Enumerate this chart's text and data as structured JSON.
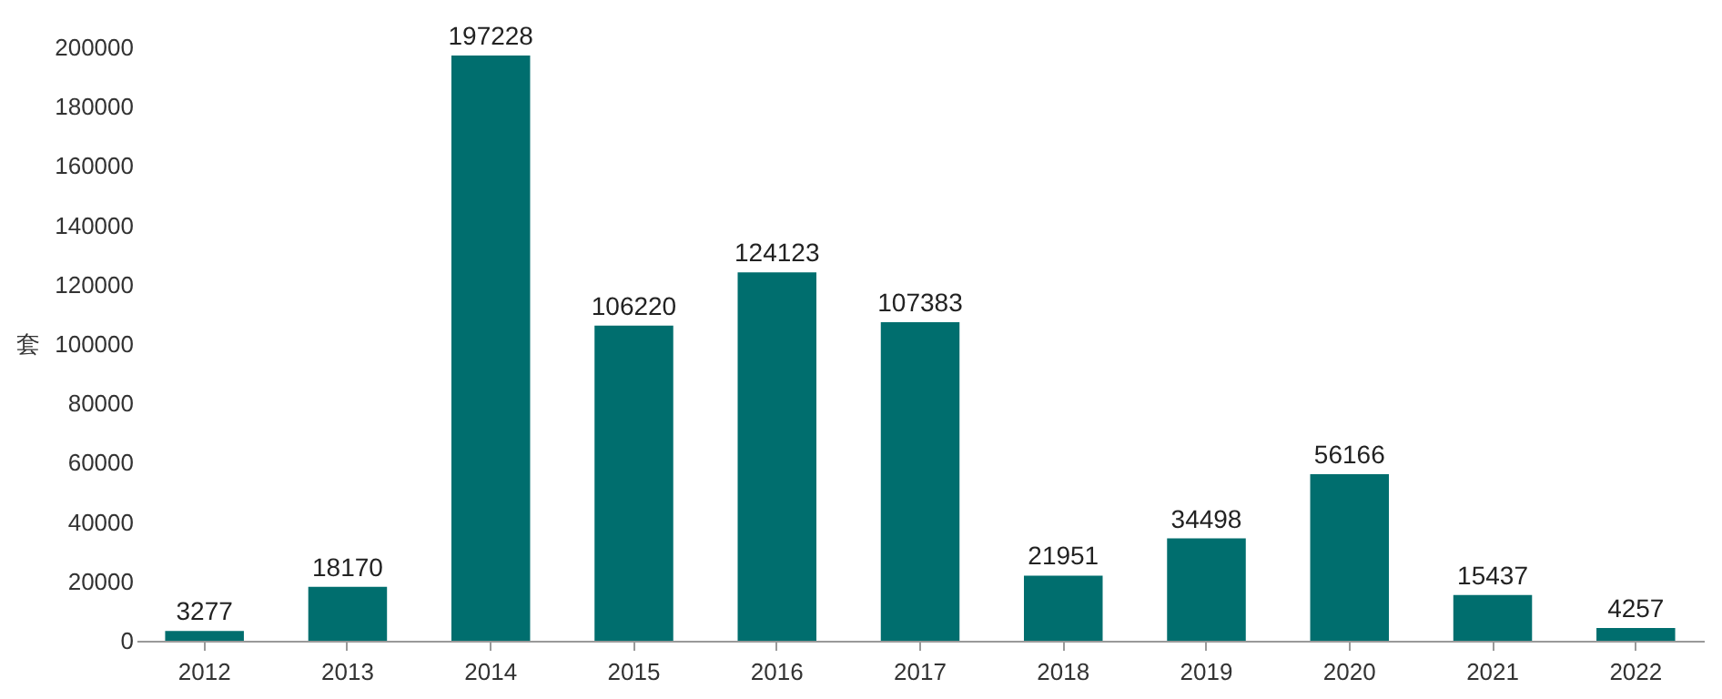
{
  "chart_data": {
    "type": "bar",
    "ylabel": "套",
    "categories": [
      "2012",
      "2013",
      "2014",
      "2015",
      "2016",
      "2017",
      "2018",
      "2019",
      "2020",
      "2021",
      "2022"
    ],
    "values": [
      3277,
      18170,
      197228,
      106220,
      124123,
      107383,
      21951,
      34498,
      56166,
      15437,
      4257
    ],
    "color": "#006e6e",
    "ylim": [
      0,
      200000
    ],
    "yticks": [
      0,
      20000,
      40000,
      60000,
      80000,
      100000,
      120000,
      140000,
      160000,
      180000,
      200000
    ],
    "grid": false,
    "data_labels": true
  }
}
